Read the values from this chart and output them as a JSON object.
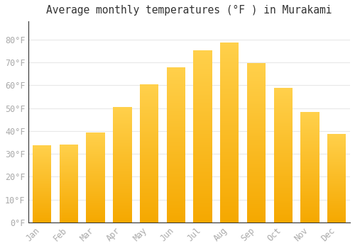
{
  "title": "Average monthly temperatures (°F ) in Murakami",
  "months": [
    "Jan",
    "Feb",
    "Mar",
    "Apr",
    "May",
    "Jun",
    "Jul",
    "Aug",
    "Sep",
    "Oct",
    "Nov",
    "Dec"
  ],
  "temperatures": [
    33.8,
    34.0,
    39.2,
    50.5,
    60.3,
    68.0,
    75.4,
    78.6,
    69.8,
    58.8,
    48.2,
    38.8
  ],
  "bar_color_top": "#FFD04B",
  "bar_color_bottom": "#F5A800",
  "background_color": "#ffffff",
  "grid_color": "#e8e8e8",
  "ylim": [
    0,
    88
  ],
  "yticks": [
    0,
    10,
    20,
    30,
    40,
    50,
    60,
    70,
    80
  ],
  "tick_label_color": "#aaaaaa",
  "title_color": "#333333",
  "title_fontsize": 10.5,
  "tick_fontsize": 8.5,
  "font_family": "monospace",
  "bar_width": 0.7,
  "spine_color": "#333333"
}
